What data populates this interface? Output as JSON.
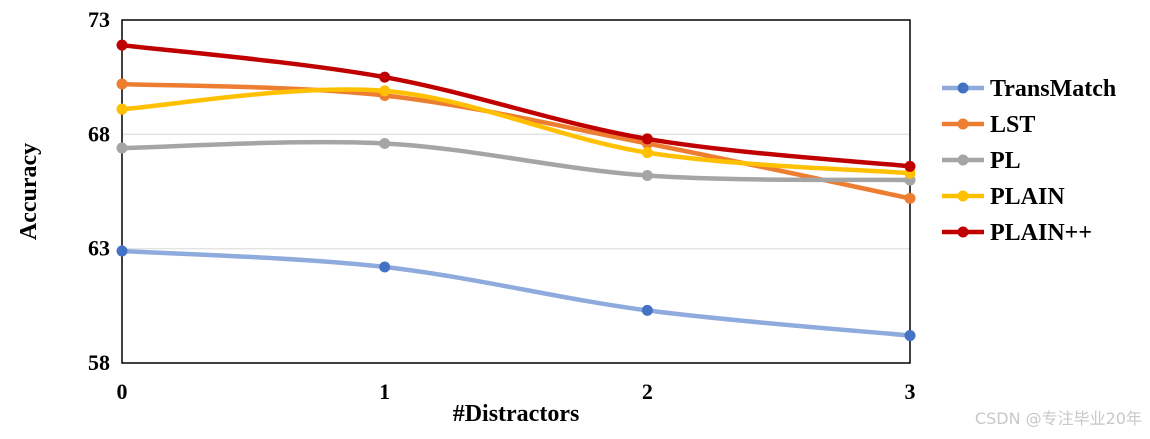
{
  "chart_data": {
    "type": "line",
    "title": "",
    "xlabel": "#Distractors",
    "ylabel": "Accuracy",
    "x": [
      0,
      1,
      2,
      3
    ],
    "x_tick_labels": [
      "0",
      "1",
      "2",
      "3"
    ],
    "ylim": [
      58,
      73
    ],
    "y_ticks": [
      58,
      63,
      68,
      73
    ],
    "y_tick_labels": [
      "58",
      "63",
      "68",
      "73"
    ],
    "grid": "horizontal",
    "legend_position": "right",
    "series": [
      {
        "name": "TransMatch",
        "color": "#4472c4",
        "line_color": "#8faadc",
        "values": [
          62.9,
          62.2,
          60.3,
          59.2
        ]
      },
      {
        "name": "LST",
        "color": "#ed7d31",
        "line_color": "#ed7d31",
        "values": [
          70.2,
          69.7,
          67.6,
          65.2
        ]
      },
      {
        "name": "PL",
        "color": "#a5a5a5",
        "line_color": "#a5a5a5",
        "values": [
          67.4,
          67.6,
          66.2,
          66.0
        ]
      },
      {
        "name": "PLAIN",
        "color": "#ffc000",
        "line_color": "#ffc000",
        "values": [
          69.1,
          69.9,
          67.2,
          66.3
        ]
      },
      {
        "name": "PLAIN++",
        "color": "#c00000",
        "line_color": "#c00000",
        "values": [
          71.9,
          70.5,
          67.8,
          66.6
        ]
      }
    ]
  },
  "watermark": "CSDN @专注毕业20年"
}
